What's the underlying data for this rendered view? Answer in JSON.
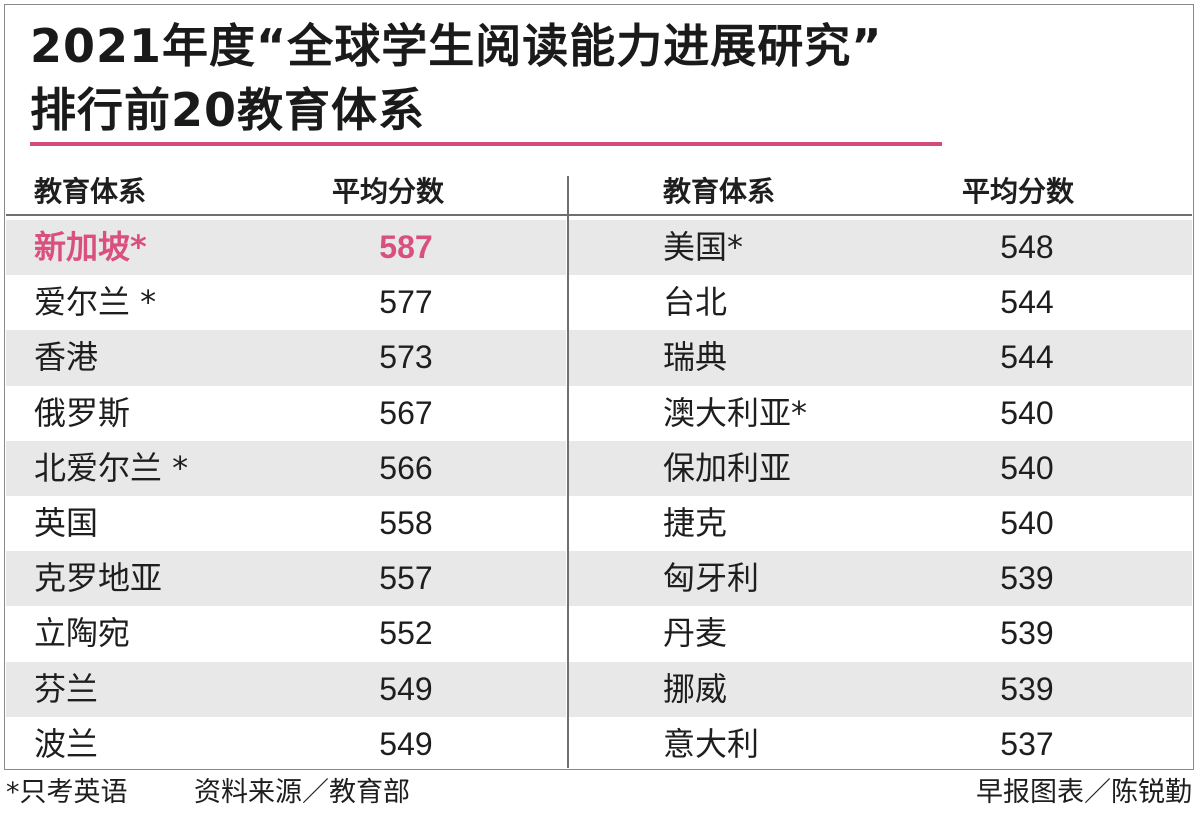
{
  "title": {
    "line1": "2021年度“全球学生阅读能力进展研究”",
    "line2": "排行前20教育体系"
  },
  "colors": {
    "accent": "#d64a78",
    "row_shade": "#e8e8e8",
    "text": "#1e1e1e"
  },
  "table": {
    "headers": {
      "left_country": "教育体系",
      "left_score": "平均分数",
      "right_country": "教育体系",
      "right_score": "平均分数"
    },
    "left_rows": [
      {
        "name": "新加坡*",
        "score": "587"
      },
      {
        "name": "爱尔兰 *",
        "score": "577"
      },
      {
        "name": "香港",
        "score": "573"
      },
      {
        "name": "俄罗斯",
        "score": "567"
      },
      {
        "name": "北爱尔兰 *",
        "score": "566"
      },
      {
        "name": "英国",
        "score": "558"
      },
      {
        "name": "克罗地亚",
        "score": "557"
      },
      {
        "name": "立陶宛",
        "score": "552"
      },
      {
        "name": "芬兰",
        "score": "549"
      },
      {
        "name": "波兰",
        "score": "549"
      }
    ],
    "right_rows": [
      {
        "name": "美国*",
        "score": "548"
      },
      {
        "name": "台北",
        "score": "544"
      },
      {
        "name": "瑞典",
        "score": "544"
      },
      {
        "name": "澳大利亚*",
        "score": "540"
      },
      {
        "name": "保加利亚",
        "score": "540"
      },
      {
        "name": "捷克",
        "score": "540"
      },
      {
        "name": "匈牙利",
        "score": "539"
      },
      {
        "name": "丹麦",
        "score": "539"
      },
      {
        "name": "挪威",
        "score": "539"
      },
      {
        "name": "意大利",
        "score": "537"
      }
    ]
  },
  "footer": {
    "note": "*只考英语",
    "source": "资料来源／教育部",
    "credit": "早报图表／陈锐勤"
  }
}
